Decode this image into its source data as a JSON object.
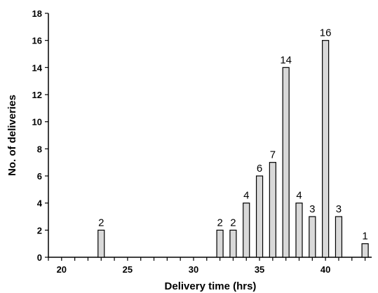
{
  "chart_data": {
    "type": "bar",
    "xlabel": "Delivery time (hrs)",
    "ylabel": "No. of deliveries",
    "xlim": [
      19,
      43.5
    ],
    "ylim": [
      0,
      18
    ],
    "x_ticks": [
      20,
      25,
      30,
      35,
      40
    ],
    "y_ticks": [
      0,
      2,
      4,
      6,
      8,
      10,
      12,
      14,
      16,
      18
    ],
    "grid": false,
    "bar_color": "#d9d9d9",
    "bar_edge_color": "#000000",
    "series": [
      {
        "x": [
          23,
          32,
          33,
          34,
          35,
          36,
          37,
          38,
          39,
          40,
          41,
          43
        ],
        "values": [
          2,
          2,
          2,
          4,
          6,
          7,
          14,
          4,
          3,
          16,
          3,
          1
        ]
      }
    ]
  }
}
